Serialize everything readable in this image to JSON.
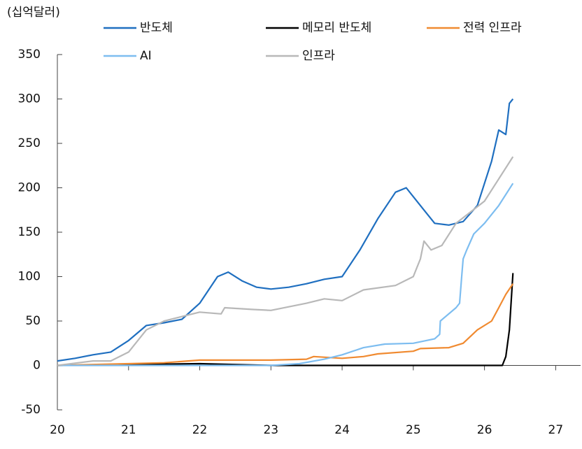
{
  "chart_data": {
    "type": "line",
    "y_label": "(십억달러)",
    "xlim": [
      20,
      27.35
    ],
    "xticks": [
      20,
      21,
      22,
      23,
      24,
      25,
      26,
      27
    ],
    "ylim": [
      -50,
      350
    ],
    "yticks": [
      -50,
      0,
      50,
      100,
      150,
      200,
      250,
      300,
      350
    ],
    "series": [
      {
        "name": "반도체",
        "color": "#1f6fc0",
        "x": [
          20,
          20.25,
          20.5,
          20.75,
          21,
          21.25,
          21.5,
          21.75,
          22,
          22.25,
          22.4,
          22.6,
          22.8,
          23,
          23.25,
          23.5,
          23.75,
          24,
          24.25,
          24.5,
          24.75,
          24.9,
          25,
          25.15,
          25.3,
          25.5,
          25.7,
          25.9,
          26,
          26.1,
          26.2,
          26.3,
          26.35,
          26.4
        ],
        "values": [
          5,
          8,
          12,
          15,
          28,
          45,
          48,
          52,
          70,
          100,
          105,
          95,
          88,
          86,
          88,
          92,
          97,
          100,
          130,
          165,
          195,
          200,
          190,
          175,
          160,
          158,
          162,
          180,
          205,
          230,
          265,
          260,
          295,
          300
        ]
      },
      {
        "name": "메모리 반도체",
        "color": "#000000",
        "x": [
          20,
          21,
          22,
          23,
          24,
          25,
          26.25,
          26.3,
          26.35,
          26.4
        ],
        "values": [
          0,
          1,
          2,
          0,
          0,
          0,
          0,
          10,
          40,
          104
        ]
      },
      {
        "name": "전력 인프라",
        "color": "#f08a30",
        "x": [
          20,
          21,
          21.5,
          22,
          22.5,
          23,
          23.5,
          23.6,
          24,
          24.3,
          24.5,
          25,
          25.1,
          25.5,
          25.7,
          25.9,
          26.1,
          26.2,
          26.3,
          26.4
        ],
        "values": [
          0,
          2,
          3,
          6,
          6,
          6,
          7,
          10,
          8,
          10,
          13,
          16,
          19,
          20,
          25,
          40,
          50,
          65,
          80,
          92
        ]
      },
      {
        "name": "AI",
        "color": "#7dbdf0",
        "x": [
          20,
          21,
          22,
          23,
          23.4,
          23.75,
          24,
          24.3,
          24.6,
          25,
          25.3,
          25.37,
          25.38,
          25.6,
          25.65,
          25.68,
          25.7,
          25.75,
          25.85,
          26,
          26.2,
          26.4
        ],
        "values": [
          0,
          0,
          0,
          0,
          2,
          7,
          12,
          20,
          24,
          25,
          30,
          35,
          50,
          65,
          70,
          100,
          120,
          130,
          148,
          160,
          180,
          205
        ]
      },
      {
        "name": "인프라",
        "color": "#b8b8b8",
        "x": [
          20,
          20.5,
          20.75,
          21,
          21.25,
          21.5,
          21.75,
          22,
          22.3,
          22.35,
          22.75,
          23,
          23.5,
          23.75,
          24,
          24.3,
          24.75,
          25,
          25.1,
          25.15,
          25.25,
          25.4,
          25.6,
          26,
          26.2,
          26.4
        ],
        "values": [
          0,
          5,
          5,
          15,
          40,
          50,
          55,
          60,
          58,
          65,
          63,
          62,
          70,
          75,
          73,
          85,
          90,
          100,
          120,
          140,
          130,
          135,
          160,
          185,
          210,
          235
        ]
      }
    ]
  }
}
